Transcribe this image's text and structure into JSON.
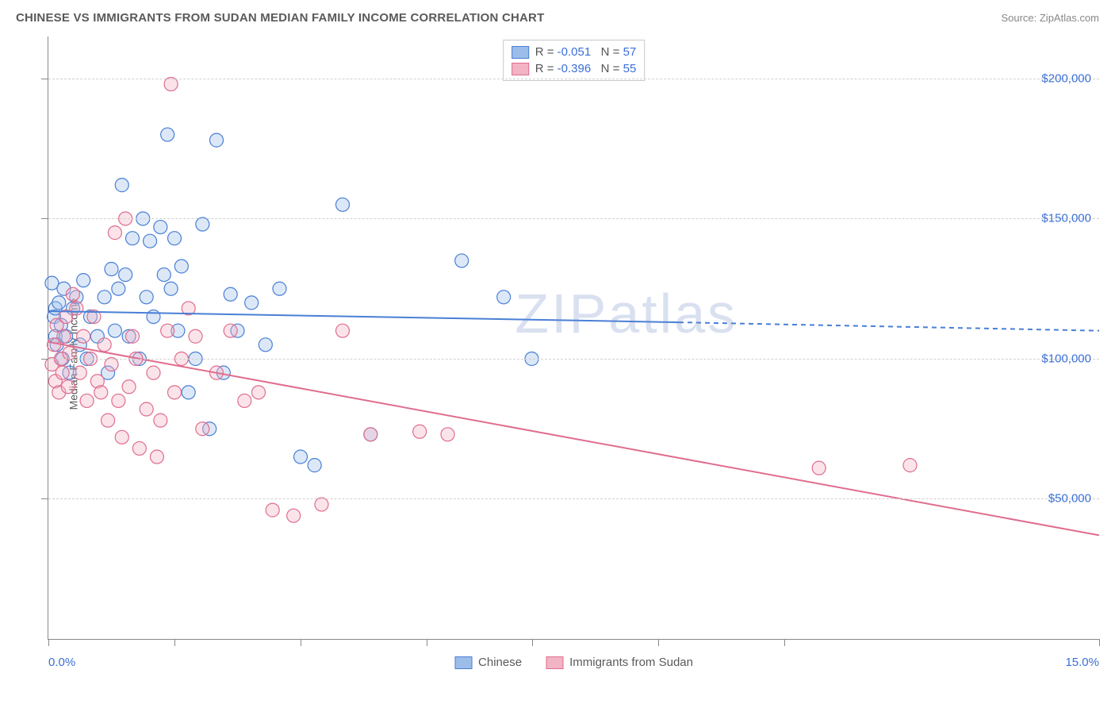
{
  "title": "CHINESE VS IMMIGRANTS FROM SUDAN MEDIAN FAMILY INCOME CORRELATION CHART",
  "source": "Source: ZipAtlas.com",
  "watermark": "ZIPatlas",
  "y_axis_label": "Median Family Income",
  "chart": {
    "type": "scatter",
    "x_min": 0.0,
    "x_max": 15.0,
    "y_min": 0,
    "y_max": 215000,
    "x_ticks": [
      0.0,
      1.8,
      3.6,
      5.4,
      6.9,
      8.7,
      10.5,
      15.0
    ],
    "y_gridlines": [
      50000,
      100000,
      150000,
      200000
    ],
    "y_tick_labels": [
      "$50,000",
      "$100,000",
      "$150,000",
      "$200,000"
    ],
    "x_label_min": "0.0%",
    "x_label_max": "15.0%",
    "background_color": "#ffffff",
    "grid_color": "#d0d0d0",
    "axis_color": "#888888",
    "marker_radius": 8.5,
    "marker_fill_opacity": 0.35,
    "marker_stroke_width": 1.2,
    "line_width": 2,
    "series": [
      {
        "name": "Chinese",
        "color_stroke": "#4a7fd6",
        "color_fill": "#9cbde8",
        "R": "-0.051",
        "N": "57",
        "regression": {
          "x1": 0.0,
          "y1": 117000,
          "x2": 9.0,
          "y2": 113000,
          "dash_x2": 15.0,
          "dash_y2": 110000
        },
        "points": [
          [
            0.05,
            127000
          ],
          [
            0.08,
            115000
          ],
          [
            0.1,
            108000
          ],
          [
            0.1,
            118000
          ],
          [
            0.12,
            105000
          ],
          [
            0.15,
            120000
          ],
          [
            0.18,
            112000
          ],
          [
            0.2,
            100000
          ],
          [
            0.22,
            125000
          ],
          [
            0.25,
            108000
          ],
          [
            0.3,
            95000
          ],
          [
            0.35,
            118000
          ],
          [
            0.4,
            122000
          ],
          [
            0.45,
            105000
          ],
          [
            0.5,
            128000
          ],
          [
            0.55,
            100000
          ],
          [
            0.6,
            115000
          ],
          [
            0.7,
            108000
          ],
          [
            0.8,
            122000
          ],
          [
            0.85,
            95000
          ],
          [
            0.9,
            132000
          ],
          [
            0.95,
            110000
          ],
          [
            1.0,
            125000
          ],
          [
            1.05,
            162000
          ],
          [
            1.1,
            130000
          ],
          [
            1.15,
            108000
          ],
          [
            1.2,
            143000
          ],
          [
            1.3,
            100000
          ],
          [
            1.35,
            150000
          ],
          [
            1.4,
            122000
          ],
          [
            1.45,
            142000
          ],
          [
            1.5,
            115000
          ],
          [
            1.6,
            147000
          ],
          [
            1.65,
            130000
          ],
          [
            1.7,
            180000
          ],
          [
            1.75,
            125000
          ],
          [
            1.8,
            143000
          ],
          [
            1.85,
            110000
          ],
          [
            1.9,
            133000
          ],
          [
            2.0,
            88000
          ],
          [
            2.1,
            100000
          ],
          [
            2.2,
            148000
          ],
          [
            2.3,
            75000
          ],
          [
            2.4,
            178000
          ],
          [
            2.5,
            95000
          ],
          [
            2.6,
            123000
          ],
          [
            2.7,
            110000
          ],
          [
            2.9,
            120000
          ],
          [
            3.1,
            105000
          ],
          [
            3.3,
            125000
          ],
          [
            3.6,
            65000
          ],
          [
            3.8,
            62000
          ],
          [
            4.2,
            155000
          ],
          [
            4.6,
            73000
          ],
          [
            5.9,
            135000
          ],
          [
            6.5,
            122000
          ],
          [
            6.9,
            100000
          ]
        ]
      },
      {
        "name": "Immigrants from Sudan",
        "color_stroke": "#e06d8e",
        "color_fill": "#f2b3c4",
        "R": "-0.396",
        "N": "55",
        "regression": {
          "x1": 0.0,
          "y1": 106000,
          "x2": 15.0,
          "y2": 37000,
          "dash_x2": null,
          "dash_y2": null
        },
        "points": [
          [
            0.05,
            98000
          ],
          [
            0.08,
            105000
          ],
          [
            0.1,
            92000
          ],
          [
            0.12,
            112000
          ],
          [
            0.15,
            88000
          ],
          [
            0.18,
            100000
          ],
          [
            0.2,
            95000
          ],
          [
            0.22,
            108000
          ],
          [
            0.25,
            115000
          ],
          [
            0.28,
            90000
          ],
          [
            0.3,
            102000
          ],
          [
            0.35,
            123000
          ],
          [
            0.4,
            118000
          ],
          [
            0.45,
            95000
          ],
          [
            0.5,
            108000
          ],
          [
            0.55,
            85000
          ],
          [
            0.6,
            100000
          ],
          [
            0.65,
            115000
          ],
          [
            0.7,
            92000
          ],
          [
            0.75,
            88000
          ],
          [
            0.8,
            105000
          ],
          [
            0.85,
            78000
          ],
          [
            0.9,
            98000
          ],
          [
            0.95,
            145000
          ],
          [
            1.0,
            85000
          ],
          [
            1.05,
            72000
          ],
          [
            1.1,
            150000
          ],
          [
            1.15,
            90000
          ],
          [
            1.2,
            108000
          ],
          [
            1.25,
            100000
          ],
          [
            1.3,
            68000
          ],
          [
            1.4,
            82000
          ],
          [
            1.5,
            95000
          ],
          [
            1.55,
            65000
          ],
          [
            1.6,
            78000
          ],
          [
            1.7,
            110000
          ],
          [
            1.75,
            198000
          ],
          [
            1.8,
            88000
          ],
          [
            1.9,
            100000
          ],
          [
            2.0,
            118000
          ],
          [
            2.1,
            108000
          ],
          [
            2.2,
            75000
          ],
          [
            2.4,
            95000
          ],
          [
            2.6,
            110000
          ],
          [
            2.8,
            85000
          ],
          [
            3.0,
            88000
          ],
          [
            3.2,
            46000
          ],
          [
            3.5,
            44000
          ],
          [
            3.9,
            48000
          ],
          [
            4.2,
            110000
          ],
          [
            4.6,
            73000
          ],
          [
            5.3,
            74000
          ],
          [
            5.7,
            73000
          ],
          [
            11.0,
            61000
          ],
          [
            12.3,
            62000
          ]
        ]
      }
    ]
  },
  "legend_bottom": [
    {
      "label": "Chinese",
      "fill": "#9cbde8",
      "stroke": "#4a7fd6"
    },
    {
      "label": "Immigrants from Sudan",
      "fill": "#f2b3c4",
      "stroke": "#e06d8e"
    }
  ]
}
